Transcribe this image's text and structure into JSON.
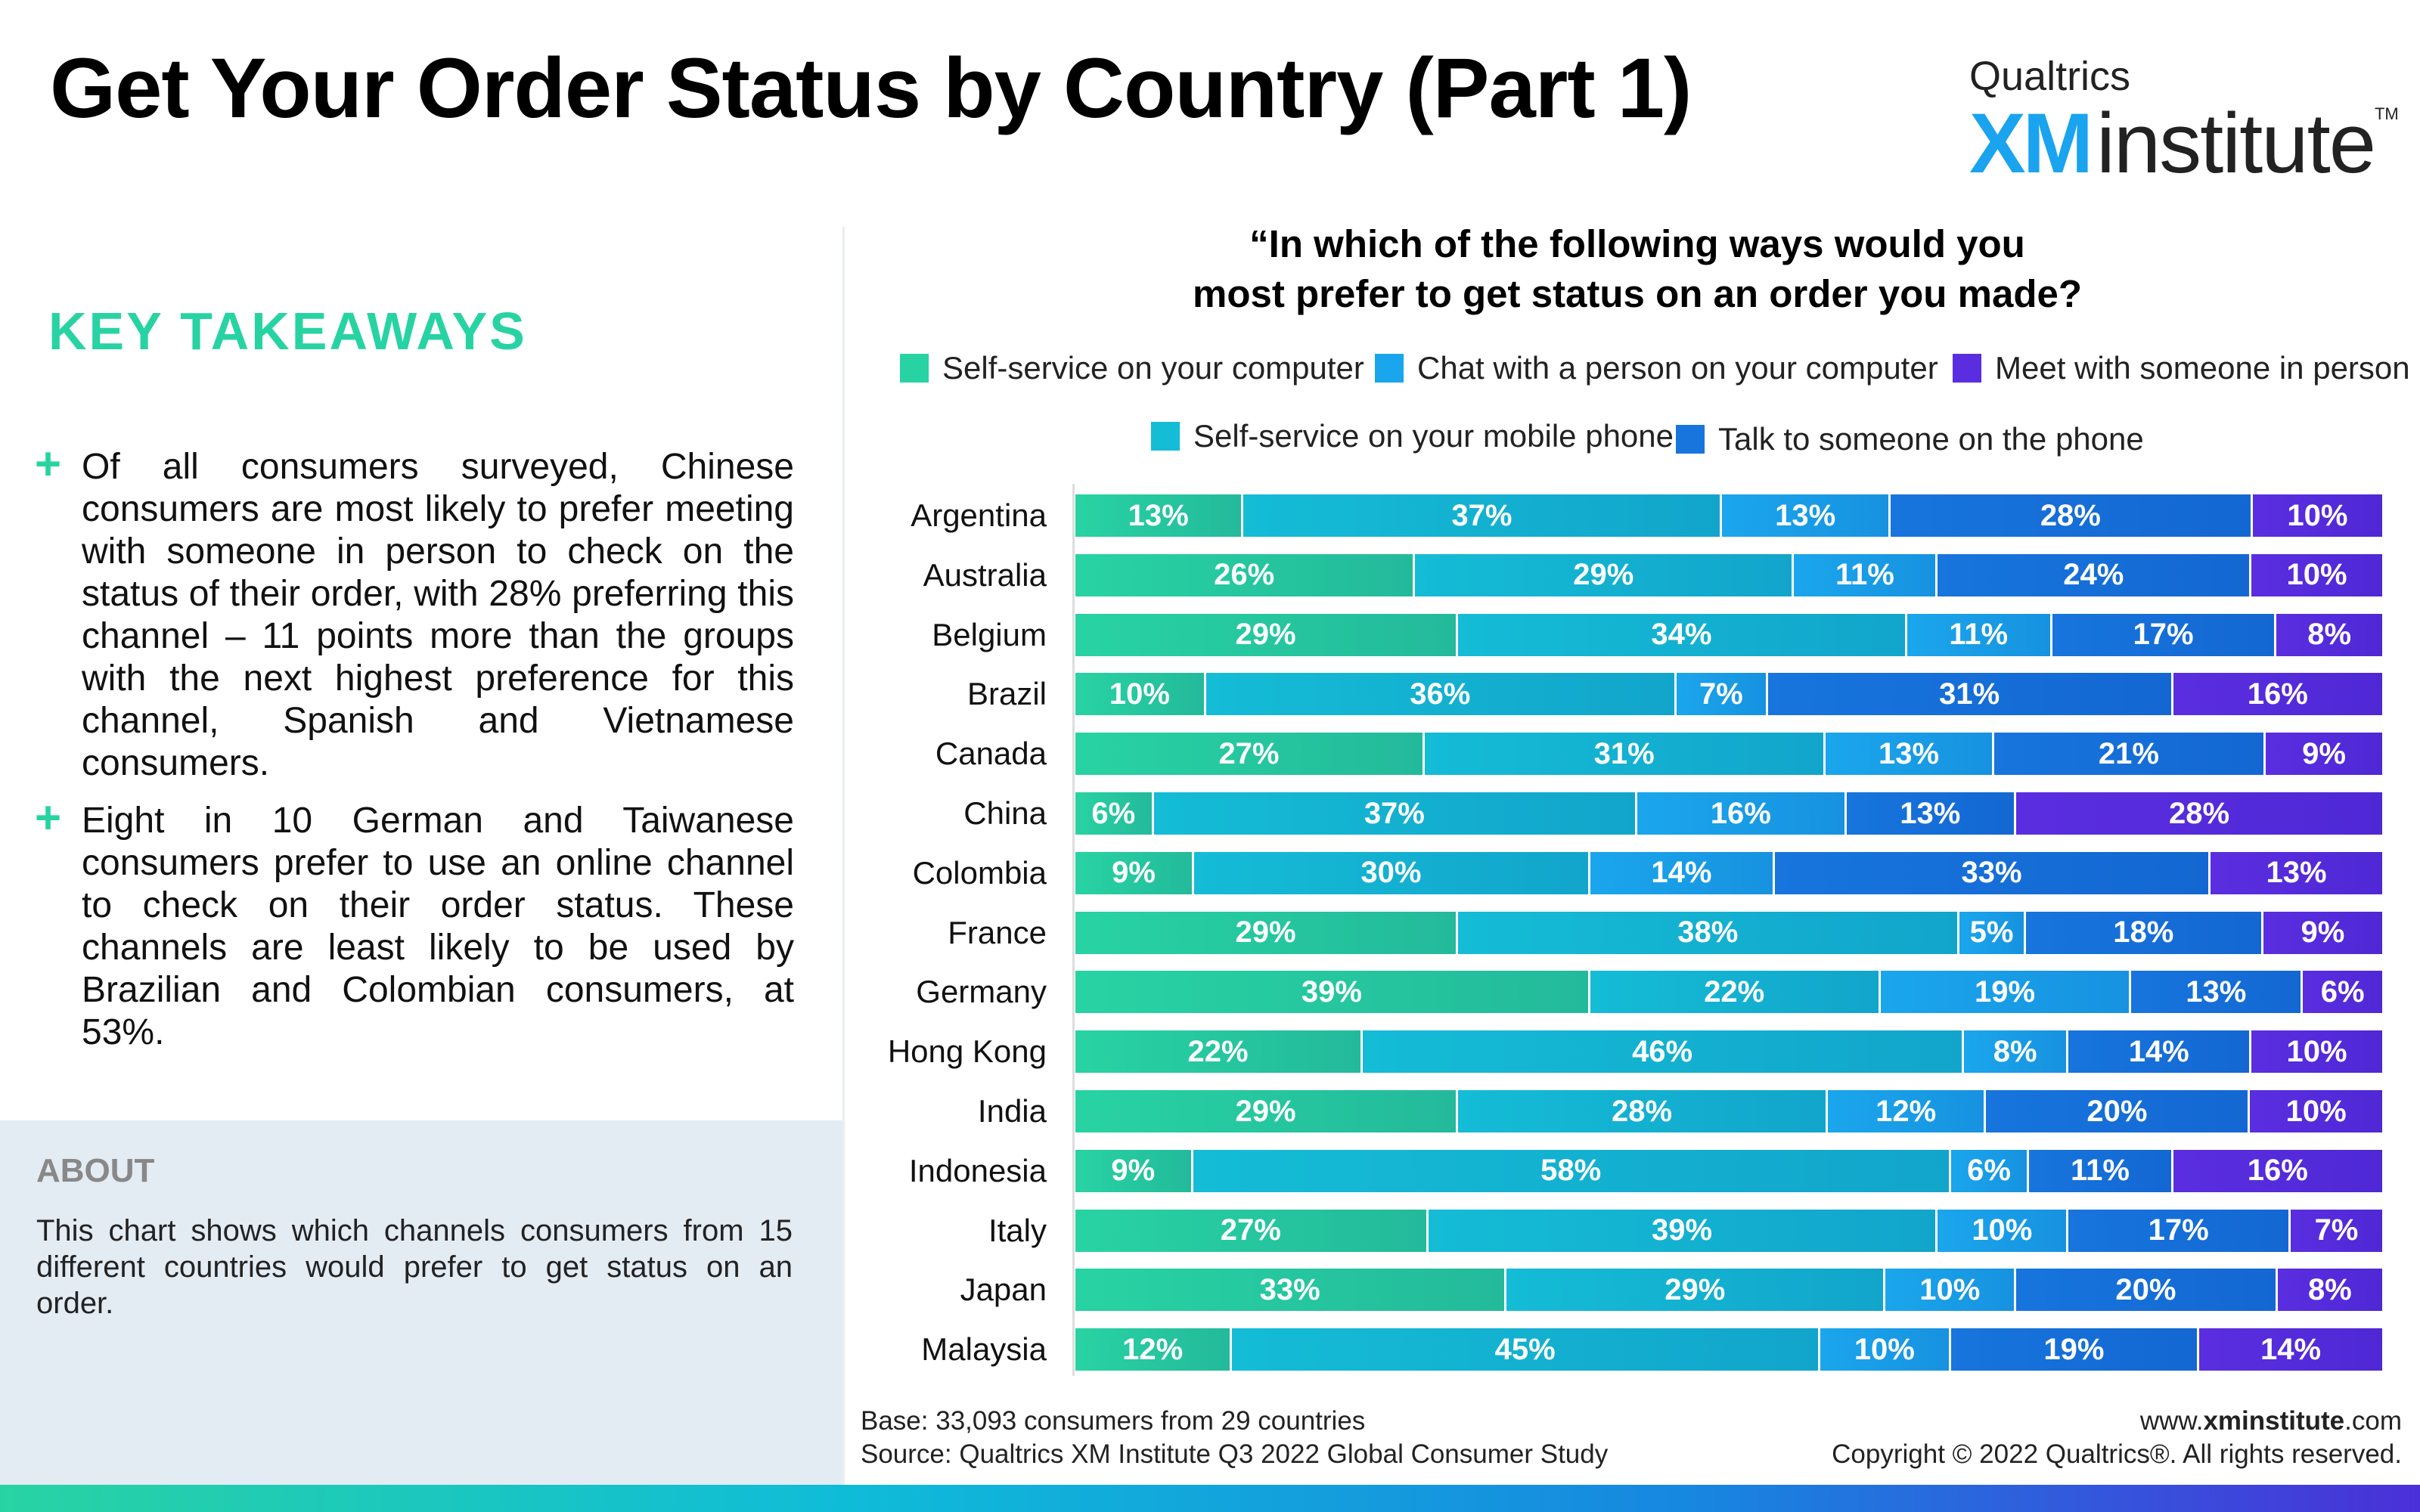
{
  "header": {
    "title": "Get Your Order Status by Country (Part 1)",
    "logo": {
      "brand": "Qualtrics",
      "xm": "XM",
      "institute": "institute",
      "tm": "TM"
    }
  },
  "takeaways": {
    "heading": "KEY TAKEAWAYS",
    "items": [
      "Of all consumers surveyed, Chinese consumers are most likely to prefer meeting with someone in person to check on the status of their order, with 28% preferring this channel – 11 points more than the groups with the next highest preference for this channel, Spanish and Vietnamese consumers.",
      "Eight in 10 German and Taiwanese consumers prefer to use an online channel to check on their order status. These channels are least likely to be used by Brazilian and Colombian consumers, at 53%."
    ]
  },
  "about": {
    "heading": "ABOUT",
    "text": "This chart shows which channels consumers from 15 different countries would prefer to get status on an order."
  },
  "colors": {
    "self_service_computer": "#28d3a3",
    "self_service_mobile": "#14bcd6",
    "chat_person_computer": "#1aa6ec",
    "talk_phone": "#1775dd",
    "meet_in_person": "#5a2ee0"
  },
  "chart_data": {
    "type": "bar",
    "orientation": "horizontal",
    "stacked": true,
    "title": "“In which of the following ways would you most prefer to get status on an order you made?",
    "title_lines": [
      "“In which of the following ways would you",
      "most prefer to get status on an order you made?"
    ],
    "categories": [
      "Argentina",
      "Australia",
      "Belgium",
      "Brazil",
      "Canada",
      "China",
      "Colombia",
      "France",
      "Germany",
      "Hong Kong",
      "India",
      "Indonesia",
      "Italy",
      "Japan",
      "Malaysia"
    ],
    "unit": "%",
    "legend_position": "top",
    "series": [
      {
        "name": "Self-service on your computer",
        "color": "#28d3a3",
        "values": [
          13,
          26,
          29,
          10,
          27,
          6,
          9,
          29,
          39,
          22,
          29,
          9,
          27,
          33,
          12
        ]
      },
      {
        "name": "Self-service on your mobile phone",
        "color": "#14bcd6",
        "values": [
          37,
          29,
          34,
          36,
          31,
          37,
          30,
          38,
          22,
          46,
          28,
          58,
          39,
          29,
          45
        ]
      },
      {
        "name": "Chat with a person on your computer",
        "color": "#1aa6ec",
        "values": [
          13,
          11,
          11,
          7,
          13,
          16,
          14,
          5,
          19,
          8,
          12,
          6,
          10,
          10,
          10
        ]
      },
      {
        "name": "Talk to someone on the phone",
        "color": "#1775dd",
        "values": [
          28,
          24,
          17,
          31,
          21,
          13,
          33,
          18,
          13,
          14,
          20,
          11,
          17,
          20,
          19
        ]
      },
      {
        "name": "Meet with someone in person",
        "color": "#5a2ee0",
        "values": [
          10,
          10,
          8,
          16,
          9,
          28,
          13,
          9,
          6,
          10,
          10,
          16,
          7,
          8,
          14
        ]
      }
    ]
  },
  "footer": {
    "base": "Base: 33,093 consumers from 29 countries",
    "source": "Source: Qualtrics XM Institute Q3 2022 Global Consumer Study",
    "website_prefix": "www.",
    "website_bold": "xminstitute",
    "website_suffix": ".com",
    "copyright": "Copyright © 2022 Qualtrics®. All rights reserved."
  }
}
